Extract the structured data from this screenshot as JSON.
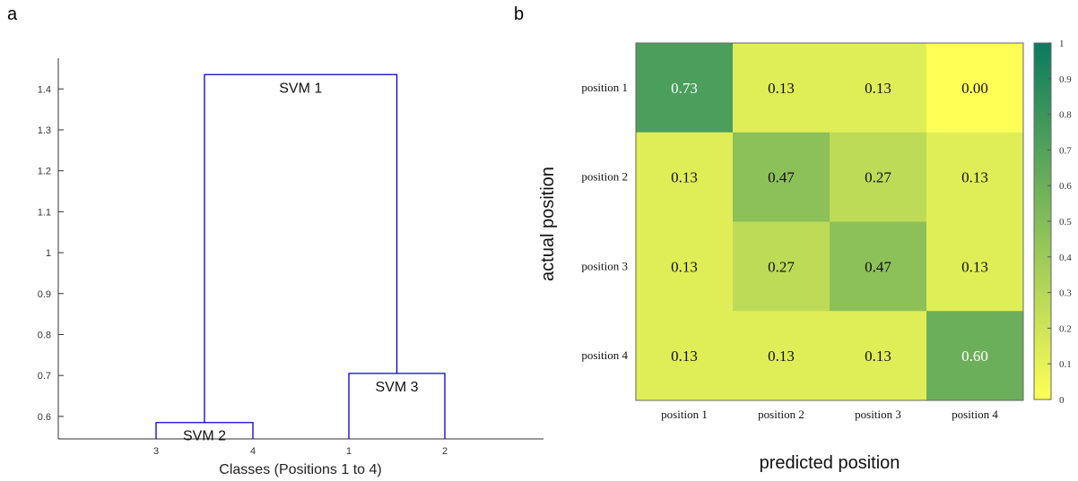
{
  "panel_labels": {
    "a": "a",
    "b": "b"
  },
  "chart_data": [
    {
      "type": "dendrogram",
      "xlabel": "Classes (Positions 1 to 4)",
      "ylabel": "",
      "ylim": [
        0.545,
        1.475
      ],
      "yticks": [
        0.6,
        0.7,
        0.8,
        0.9,
        1,
        1.1,
        1.2,
        1.3,
        1.4
      ],
      "ytick_labels": [
        "0.6",
        "0.7",
        "0.8",
        "0.9",
        "1",
        "1.1",
        "1.2",
        "1.3",
        "1.4"
      ],
      "leaves": [
        "3",
        "4",
        "1",
        "2"
      ],
      "merges": [
        {
          "name": "SVM 2",
          "left": "3",
          "right": "4",
          "height": 0.585
        },
        {
          "name": "SVM 3",
          "left": "1",
          "right": "2",
          "height": 0.705
        },
        {
          "name": "SVM 1",
          "left": "SVM 2",
          "right": "SVM 3",
          "height": 1.435
        }
      ],
      "color": "#0000cc"
    },
    {
      "type": "heatmap",
      "xlabel": "predicted position",
      "ylabel": "actual position",
      "x_categories": [
        "position 1",
        "position 2",
        "position 3",
        "position 4"
      ],
      "y_categories": [
        "position 1",
        "position 2",
        "position 3",
        "position 4"
      ],
      "values": [
        [
          0.73,
          0.13,
          0.13,
          0.0
        ],
        [
          0.13,
          0.47,
          0.27,
          0.13
        ],
        [
          0.13,
          0.27,
          0.47,
          0.13
        ],
        [
          0.13,
          0.13,
          0.13,
          0.6
        ]
      ],
      "cell_labels": [
        [
          "0.73",
          "0.13",
          "0.13",
          "0.00"
        ],
        [
          "0.13",
          "0.47",
          "0.27",
          "0.13"
        ],
        [
          "0.13",
          "0.27",
          "0.47",
          "0.13"
        ],
        [
          "0.13",
          "0.13",
          "0.13",
          "0.60"
        ]
      ],
      "colorbar": {
        "range": [
          0,
          1
        ],
        "ticks": [
          "0",
          "0.1",
          "0.2",
          "0.3",
          "0.4",
          "0.5",
          "0.6",
          "0.7",
          "0.8",
          "0.9",
          "1"
        ],
        "colormap": [
          "#ffff55",
          "#0a7a5e"
        ]
      }
    }
  ]
}
